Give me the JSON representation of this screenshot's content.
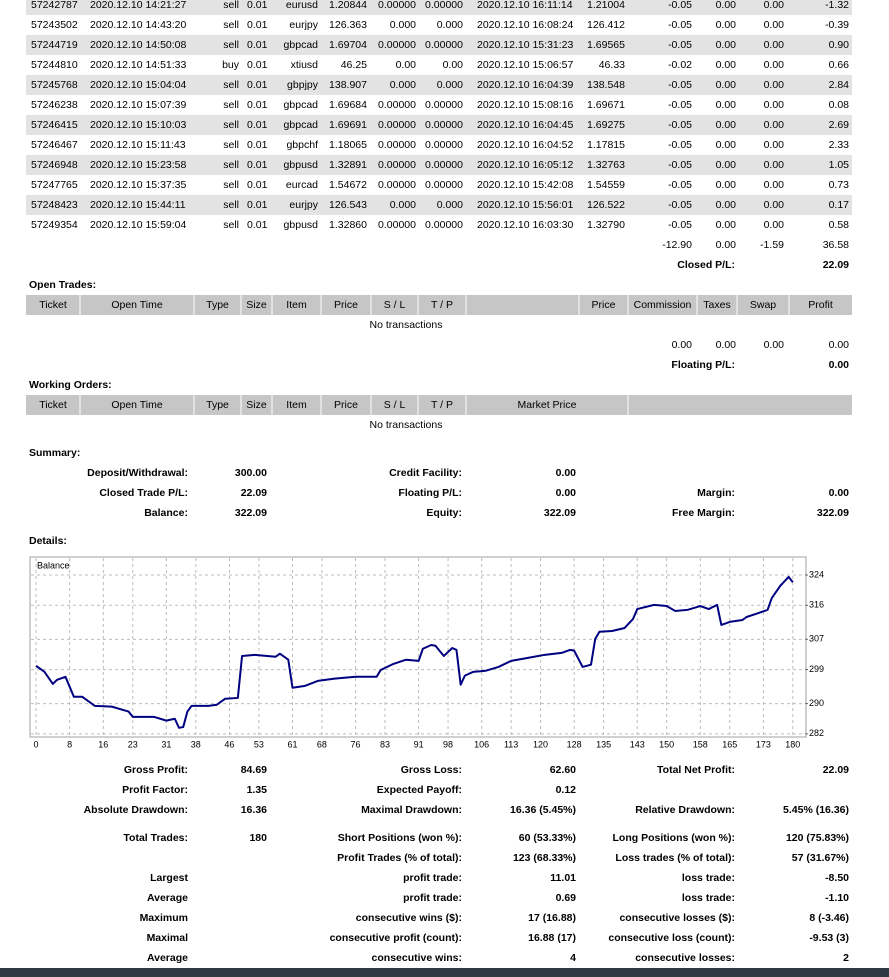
{
  "closed_trades": {
    "rows": [
      [
        "57242787",
        "2020.12.10 14:21:27",
        "sell",
        "0.01",
        "eurusd",
        "1.20844",
        "0.00000",
        "0.00000",
        "2020.12.10 16:11:14",
        "1.21004",
        "-0.05",
        "0.00",
        "0.00",
        "-1.32"
      ],
      [
        "57243502",
        "2020.12.10 14:43:20",
        "sell",
        "0.01",
        "eurjpy",
        "126.363",
        "0.000",
        "0.000",
        "2020.12.10 16:08:24",
        "126.412",
        "-0.05",
        "0.00",
        "0.00",
        "-0.39"
      ],
      [
        "57244719",
        "2020.12.10 14:50:08",
        "sell",
        "0.01",
        "gbpcad",
        "1.69704",
        "0.00000",
        "0.00000",
        "2020.12.10 15:31:23",
        "1.69565",
        "-0.05",
        "0.00",
        "0.00",
        "0.90"
      ],
      [
        "57244810",
        "2020.12.10 14:51:33",
        "buy",
        "0.01",
        "xtiusd",
        "46.25",
        "0.00",
        "0.00",
        "2020.12.10 15:06:57",
        "46.33",
        "-0.02",
        "0.00",
        "0.00",
        "0.66"
      ],
      [
        "57245768",
        "2020.12.10 15:04:04",
        "sell",
        "0.01",
        "gbpjpy",
        "138.907",
        "0.000",
        "0.000",
        "2020.12.10 16:04:39",
        "138.548",
        "-0.05",
        "0.00",
        "0.00",
        "2.84"
      ],
      [
        "57246238",
        "2020.12.10 15:07:39",
        "sell",
        "0.01",
        "gbpcad",
        "1.69684",
        "0.00000",
        "0.00000",
        "2020.12.10 15:08:16",
        "1.69671",
        "-0.05",
        "0.00",
        "0.00",
        "0.08"
      ],
      [
        "57246415",
        "2020.12.10 15:10:03",
        "sell",
        "0.01",
        "gbpcad",
        "1.69691",
        "0.00000",
        "0.00000",
        "2020.12.10 16:04:45",
        "1.69275",
        "-0.05",
        "0.00",
        "0.00",
        "2.69"
      ],
      [
        "57246467",
        "2020.12.10 15:11:43",
        "sell",
        "0.01",
        "gbpchf",
        "1.18065",
        "0.00000",
        "0.00000",
        "2020.12.10 16:04:52",
        "1.17815",
        "-0.05",
        "0.00",
        "0.00",
        "2.33"
      ],
      [
        "57246948",
        "2020.12.10 15:23:58",
        "sell",
        "0.01",
        "gbpusd",
        "1.32891",
        "0.00000",
        "0.00000",
        "2020.12.10 16:05:12",
        "1.32763",
        "-0.05",
        "0.00",
        "0.00",
        "1.05"
      ],
      [
        "57247765",
        "2020.12.10 15:37:35",
        "sell",
        "0.01",
        "eurcad",
        "1.54672",
        "0.00000",
        "0.00000",
        "2020.12.10 15:42:08",
        "1.54559",
        "-0.05",
        "0.00",
        "0.00",
        "0.73"
      ],
      [
        "57248423",
        "2020.12.10 15:44:11",
        "sell",
        "0.01",
        "eurjpy",
        "126.543",
        "0.000",
        "0.000",
        "2020.12.10 15:56:01",
        "126.522",
        "-0.05",
        "0.00",
        "0.00",
        "0.17"
      ],
      [
        "57249354",
        "2020.12.10 15:59:04",
        "sell",
        "0.01",
        "gbpusd",
        "1.32860",
        "0.00000",
        "0.00000",
        "2020.12.10 16:03:30",
        "1.32790",
        "-0.05",
        "0.00",
        "0.00",
        "0.58"
      ]
    ],
    "totals": [
      "-12.90",
      "0.00",
      "-1.59",
      "36.58"
    ],
    "closed_pl": {
      "label": "Closed P/L:",
      "value": "22.09"
    }
  },
  "open_trades": {
    "title": "Open Trades:",
    "headers": [
      "Ticket",
      "Open Time",
      "Type",
      "Size",
      "Item",
      "Price",
      "S / L",
      "T / P",
      "Price",
      "Commission",
      "Taxes",
      "Swap",
      "Profit"
    ],
    "message": "No transactions",
    "totals": [
      "0.00",
      "0.00",
      "0.00",
      "0.00"
    ],
    "floating_pl": {
      "label": "Floating P/L:",
      "value": "0.00"
    }
  },
  "working_orders": {
    "title": "Working Orders:",
    "headers": [
      "Ticket",
      "Open Time",
      "Type",
      "Size",
      "Item",
      "Price",
      "S / L",
      "T / P",
      "Market Price"
    ],
    "message": "No transactions"
  },
  "summary": {
    "title": "Summary:",
    "rows": [
      {
        "left": {
          "label": "Deposit/Withdrawal:",
          "value": "300.00"
        },
        "middle": {
          "label": "Credit Facility:",
          "value": "0.00"
        }
      },
      {
        "left": {
          "label": "Closed Trade P/L:",
          "value": "22.09"
        },
        "middle": {
          "label": "Floating P/L:",
          "value": "0.00"
        },
        "right": {
          "label": "Margin:",
          "value": "0.00"
        }
      },
      {
        "left": {
          "label": "Balance:",
          "value": "322.09"
        },
        "middle": {
          "label": "Equity:",
          "value": "322.09"
        },
        "right": {
          "label": "Free Margin:",
          "value": "322.09"
        }
      }
    ]
  },
  "details": {
    "title": "Details:"
  },
  "chart_data": {
    "type": "line",
    "x": [
      0,
      2,
      4,
      5,
      7,
      9,
      11,
      14,
      18,
      22,
      23,
      28,
      31,
      33,
      34,
      35,
      36,
      37,
      41,
      43,
      45,
      48,
      49,
      52,
      57,
      58,
      60,
      61,
      64,
      67,
      71,
      76,
      81,
      82,
      85,
      88,
      91,
      92,
      94,
      95,
      97,
      99,
      100,
      101,
      102,
      104,
      107,
      110,
      113,
      117,
      121,
      125,
      127,
      128,
      130,
      132,
      133,
      134,
      137,
      140,
      142,
      143,
      147,
      150,
      152,
      155,
      158,
      160,
      162,
      163,
      165,
      168,
      169,
      172,
      174,
      175,
      177,
      179,
      180
    ],
    "series": [
      {
        "name": "Balance",
        "color": "#000080",
        "values": [
          300,
          298.4,
          295.2,
          296.3,
          297.1,
          291.8,
          291.8,
          289.4,
          289.2,
          287.9,
          286.5,
          286.5,
          285.5,
          286.0,
          283.6,
          283.8,
          287.9,
          289.4,
          289.4,
          289.7,
          291.3,
          291.5,
          302.6,
          302.9,
          302.4,
          303.2,
          301.6,
          294.2,
          294.7,
          296.0,
          296.6,
          297.1,
          297.1,
          298.9,
          300.5,
          301.6,
          301.3,
          304.5,
          305.5,
          305.3,
          302.6,
          304.7,
          304.2,
          295.0,
          297.4,
          298.4,
          298.7,
          299.7,
          301.3,
          302.1,
          302.9,
          303.4,
          304.2,
          304.0,
          299.7,
          300.3,
          307.1,
          309.0,
          309.2,
          310.0,
          312.4,
          315.0,
          316.1,
          315.8,
          314.5,
          314.8,
          315.8,
          315.0,
          316.1,
          310.8,
          311.6,
          312.1,
          312.9,
          314.0,
          314.8,
          317.9,
          321.1,
          323.5,
          322.09
        ]
      }
    ],
    "xlim": [
      -1.2,
      182.9
    ],
    "ylim": [
      281.7,
      328.5
    ],
    "xticks": [
      0,
      8,
      16,
      23,
      31,
      38,
      46,
      53,
      61,
      68,
      76,
      83,
      91,
      98,
      106,
      113,
      120,
      128,
      135,
      143,
      150,
      158,
      165,
      173,
      180
    ],
    "yticks": [
      324,
      316,
      307,
      299,
      290,
      282
    ],
    "grid": true
  },
  "stats": {
    "rows": [
      {
        "left": {
          "label": "Gross Profit:",
          "value": "84.69"
        },
        "middle": {
          "label": "Gross Loss:",
          "value": "62.60"
        },
        "right": {
          "label": "Total Net Profit:",
          "value": "22.09"
        }
      },
      {
        "left": {
          "label": "Profit Factor:",
          "value": "1.35"
        },
        "middle": {
          "label": "Expected Payoff:",
          "value": "0.12"
        }
      },
      {
        "left": {
          "label": "Absolute Drawdown:",
          "value": "16.36"
        },
        "middle": {
          "label": "Maximal Drawdown:",
          "value": "16.36 (5.45%)"
        },
        "right": {
          "label": "Relative Drawdown:",
          "value": "5.45% (16.36)"
        }
      },
      {
        "left": {
          "label": "Total Trades:",
          "value": "180"
        },
        "middle": {
          "label": "Short Positions (won %):",
          "value": "60 (53.33%)"
        },
        "right": {
          "label": "Long Positions (won %):",
          "value": "120 (75.83%)"
        }
      },
      {
        "middle": {
          "label": "Profit Trades (% of total):",
          "value": "123 (68.33%)"
        },
        "right": {
          "label": "Loss trades (% of total):",
          "value": "57 (31.67%)"
        }
      },
      {
        "left": {
          "label": "Largest"
        },
        "middle": {
          "label": "profit trade:",
          "value": "11.01"
        },
        "right": {
          "label": "loss trade:",
          "value": "-8.50"
        }
      },
      {
        "left": {
          "label": "Average"
        },
        "middle": {
          "label": "profit trade:",
          "value": "0.69"
        },
        "right": {
          "label": "loss trade:",
          "value": "-1.10"
        }
      },
      {
        "left": {
          "label": "Maximum"
        },
        "middle": {
          "label": "consecutive wins ($):",
          "value": "17 (16.88)"
        },
        "right": {
          "label": "consecutive losses ($):",
          "value": "8 (-3.46)"
        }
      },
      {
        "left": {
          "label": "Maximal"
        },
        "middle": {
          "label": "consecutive profit (count):",
          "value": "16.88 (17)"
        },
        "right": {
          "label": "consecutive loss (count):",
          "value": "-9.53 (3)"
        }
      },
      {
        "left": {
          "label": "Average"
        },
        "middle": {
          "label": "consecutive wins:",
          "value": "4"
        },
        "right": {
          "label": "consecutive losses:",
          "value": "2"
        }
      }
    ]
  }
}
